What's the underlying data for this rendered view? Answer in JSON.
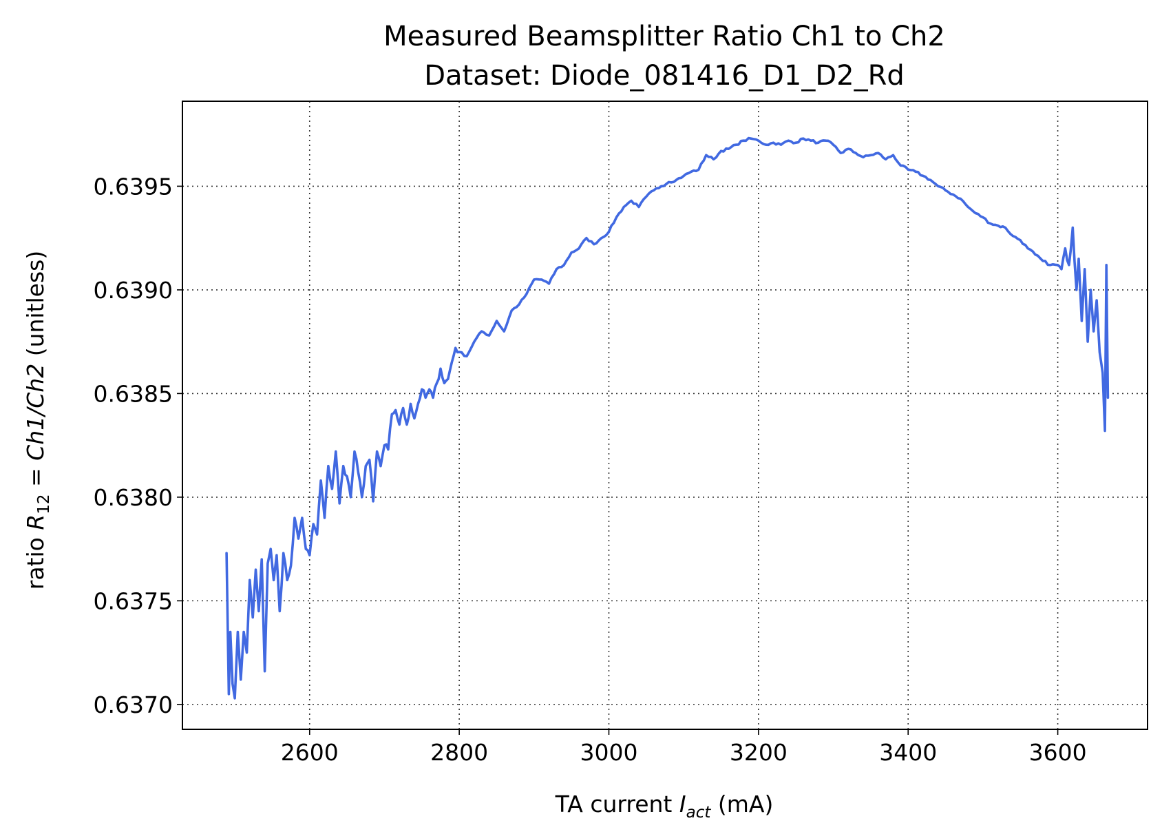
{
  "chart_data": {
    "type": "line",
    "title": "Measured Beamsplitter Ratio Ch1 to Ch2",
    "subtitle": "Dataset: Diode_081416_D1_D2_Rd",
    "xlabel": {
      "pre": "TA current ",
      "var": "I",
      "sub": "act",
      "post": " (mA)"
    },
    "ylabel": {
      "pre": "ratio ",
      "var": "R",
      "sub": "12",
      "eq": " = ",
      "expr": "Ch1/Ch2",
      "post": " (unitless)"
    },
    "xlim": [
      2430,
      3720
    ],
    "ylim": [
      0.63688,
      0.63991
    ],
    "xticks": [
      2600,
      2800,
      3000,
      3200,
      3400,
      3600
    ],
    "yticks": [
      0.637,
      0.6375,
      0.638,
      0.6385,
      0.639,
      0.6395
    ],
    "ytick_labels": [
      "0.6370",
      "0.6375",
      "0.6380",
      "0.6385",
      "0.6390",
      "0.6395"
    ],
    "grid": true,
    "color": "#4169e1",
    "series": [
      {
        "x": [
          2489,
          2492,
          2494,
          2497,
          2500,
          2504,
          2508,
          2512,
          2516,
          2520,
          2524,
          2528,
          2532,
          2536,
          2540,
          2544,
          2548,
          2552,
          2556,
          2560,
          2565,
          2570,
          2575,
          2580,
          2585,
          2590,
          2595,
          2600,
          2605,
          2610,
          2615,
          2620,
          2625,
          2630,
          2635,
          2640,
          2645,
          2650,
          2655,
          2660,
          2665,
          2670,
          2675,
          2680,
          2685,
          2690,
          2695,
          2700,
          2705,
          2710,
          2715,
          2720,
          2725,
          2730,
          2735,
          2740,
          2745,
          2750,
          2755,
          2760,
          2765,
          2770,
          2775,
          2780,
          2785,
          2790,
          2795,
          2800,
          2810,
          2820,
          2830,
          2840,
          2850,
          2860,
          2870,
          2880,
          2890,
          2900,
          2910,
          2920,
          2930,
          2940,
          2950,
          2960,
          2970,
          2980,
          2990,
          3000,
          3010,
          3020,
          3030,
          3040,
          3050,
          3060,
          3070,
          3080,
          3090,
          3100,
          3110,
          3120,
          3130,
          3140,
          3150,
          3160,
          3170,
          3180,
          3190,
          3200,
          3210,
          3220,
          3230,
          3240,
          3250,
          3260,
          3270,
          3280,
          3290,
          3300,
          3310,
          3320,
          3330,
          3340,
          3350,
          3360,
          3370,
          3380,
          3390,
          3400,
          3410,
          3420,
          3430,
          3440,
          3450,
          3460,
          3470,
          3480,
          3490,
          3500,
          3510,
          3520,
          3530,
          3540,
          3550,
          3560,
          3570,
          3580,
          3590,
          3600,
          3605,
          3610,
          3615,
          3620,
          3625,
          3628,
          3632,
          3636,
          3640,
          3644,
          3648,
          3652,
          3656,
          3660,
          3663,
          3665,
          3667
        ],
        "y": [
          0.63773,
          0.63705,
          0.63735,
          0.6371,
          0.63703,
          0.63735,
          0.63712,
          0.63735,
          0.63725,
          0.6376,
          0.63742,
          0.63765,
          0.63745,
          0.6377,
          0.63716,
          0.63768,
          0.63775,
          0.6376,
          0.63772,
          0.63745,
          0.63773,
          0.6376,
          0.63767,
          0.6379,
          0.6378,
          0.6379,
          0.63775,
          0.63772,
          0.63787,
          0.63782,
          0.63808,
          0.6379,
          0.63815,
          0.63804,
          0.63822,
          0.63797,
          0.63815,
          0.6381,
          0.638,
          0.63822,
          0.63812,
          0.638,
          0.63815,
          0.63818,
          0.63798,
          0.63822,
          0.63815,
          0.63825,
          0.63823,
          0.6384,
          0.63842,
          0.63835,
          0.63843,
          0.63835,
          0.63845,
          0.63838,
          0.63845,
          0.63852,
          0.63848,
          0.63852,
          0.63848,
          0.63855,
          0.63862,
          0.63855,
          0.63857,
          0.63865,
          0.63872,
          0.6387,
          0.63868,
          0.63875,
          0.6388,
          0.63878,
          0.63885,
          0.6388,
          0.6389,
          0.63893,
          0.63898,
          0.63905,
          0.63905,
          0.63903,
          0.6391,
          0.63912,
          0.63918,
          0.6392,
          0.63925,
          0.63922,
          0.63925,
          0.63928,
          0.63935,
          0.6394,
          0.63943,
          0.6394,
          0.63945,
          0.63948,
          0.6395,
          0.63952,
          0.63953,
          0.63955,
          0.63957,
          0.63958,
          0.63965,
          0.63963,
          0.63967,
          0.63968,
          0.6397,
          0.63972,
          0.63973,
          0.63972,
          0.6397,
          0.63971,
          0.6397,
          0.63972,
          0.63971,
          0.63973,
          0.63972,
          0.63971,
          0.63972,
          0.6397,
          0.63966,
          0.63968,
          0.63966,
          0.63964,
          0.63965,
          0.63966,
          0.63963,
          0.63965,
          0.6396,
          0.63958,
          0.63957,
          0.63955,
          0.63953,
          0.6395,
          0.63948,
          0.63946,
          0.63944,
          0.6394,
          0.63937,
          0.63935,
          0.63932,
          0.63931,
          0.6393,
          0.63926,
          0.63924,
          0.6392,
          0.63917,
          0.63914,
          0.63912,
          0.63912,
          0.6391,
          0.6392,
          0.63912,
          0.6393,
          0.639,
          0.63915,
          0.63885,
          0.6391,
          0.63875,
          0.639,
          0.6388,
          0.63895,
          0.6387,
          0.6386,
          0.63832,
          0.63912,
          0.63848
        ]
      }
    ]
  }
}
